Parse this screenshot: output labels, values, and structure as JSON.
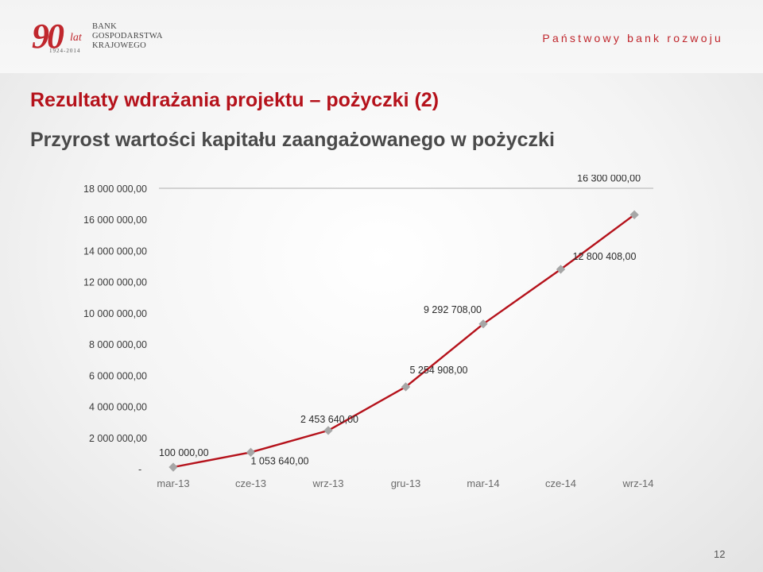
{
  "logo": {
    "number": "90",
    "lat": "lat",
    "years": "1924-2014",
    "bank_line1": "BANK",
    "bank_line2": "GOSPODARSTWA",
    "bank_line3": "KRAJOWEGO"
  },
  "tagline": "Państwowy bank rozwoju",
  "title": "Rezultaty wdrażania projektu – pożyczki (2)",
  "subtitle": "Przyrost wartości kapitału zaangażowanego w pożyczki",
  "page_number": "12",
  "colors": {
    "accent": "#c0272d",
    "line": "#b5121b",
    "marker": "#a6a6a6"
  },
  "chart_data": {
    "type": "line",
    "categories": [
      "mar-13",
      "cze-13",
      "wrz-13",
      "gru-13",
      "mar-14",
      "cze-14",
      "wrz-14"
    ],
    "y_tick_labels": [
      "-",
      "2 000 000,00",
      "4 000 000,00",
      "6 000 000,00",
      "8 000 000,00",
      "10 000 000,00",
      "12 000 000,00",
      "14 000 000,00",
      "16 000 000,00",
      "18 000 000,00"
    ],
    "ylim": [
      0,
      18000000
    ],
    "grid": false,
    "series": [
      {
        "points": [
          {
            "x": 0.0,
            "y": 100000,
            "label": "100 000,00"
          },
          {
            "x": 1.0,
            "y": 1053640,
            "label": "1 053 640,00"
          },
          {
            "x": 2.0,
            "y": 2453640,
            "label": "2 453 640,00"
          },
          {
            "x": 3.0,
            "y": 5254908,
            "label": "5 254 908,00"
          },
          {
            "x": 4.0,
            "y": 9292708,
            "label": "9 292 708,00"
          },
          {
            "x": 5.0,
            "y": 12800408,
            "label": "12 800 408,00"
          },
          {
            "x": 5.95,
            "y": 16300000,
            "label": "16 300 000,00"
          }
        ]
      }
    ]
  }
}
